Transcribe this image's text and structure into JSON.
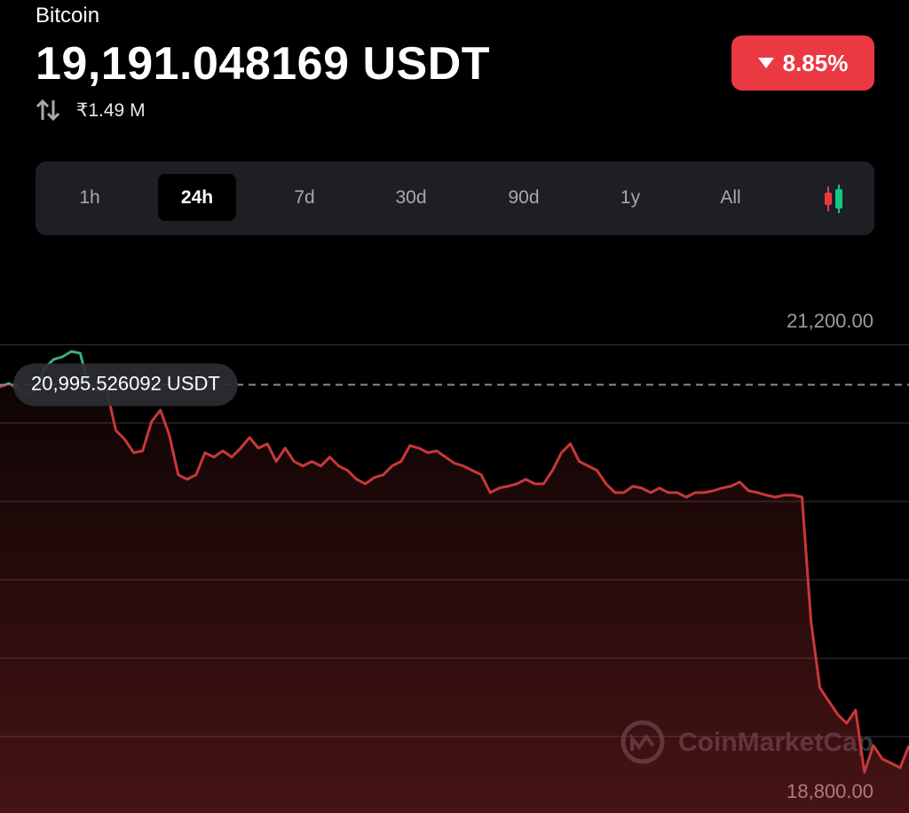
{
  "header": {
    "name": "Bitcoin",
    "price": "19,191.048169 USDT",
    "volume": "₹1.49 M",
    "change": "8.85%"
  },
  "tabs": {
    "items": [
      "1h",
      "24h",
      "7d",
      "30d",
      "90d",
      "1y",
      "All"
    ],
    "active": 1
  },
  "watermark": "CoinMarketCap",
  "chart_data": {
    "type": "line",
    "series": [
      {
        "color": "#c8383a",
        "up_color": "#3fae7a",
        "values": [
          20984,
          21002,
          20975,
          20943,
          20966,
          21079,
          21124,
          21138,
          21165,
          21156,
          20975,
          20966,
          20966,
          20762,
          20717,
          20649,
          20658,
          20807,
          20866,
          20739,
          20536,
          20513,
          20536,
          20649,
          20626,
          20658,
          20626,
          20672,
          20726,
          20672,
          20694,
          20604,
          20672,
          20604,
          20581,
          20604,
          20581,
          20626,
          20581,
          20558,
          20513,
          20490,
          20522,
          20536,
          20581,
          20604,
          20685,
          20672,
          20649,
          20658,
          20626,
          20595,
          20581,
          20558,
          20536,
          20445,
          20468,
          20477,
          20490,
          20513,
          20490,
          20490,
          20558,
          20649,
          20694,
          20604,
          20581,
          20558,
          20490,
          20445,
          20445,
          20477,
          20468,
          20445,
          20468,
          20445,
          20445,
          20422,
          20445,
          20445,
          20454,
          20468,
          20477,
          20499,
          20454,
          20445,
          20432,
          20422,
          20432,
          20432,
          20422,
          19788,
          19449,
          19381,
          19313,
          19268,
          19335,
          19018,
          19154,
          19086,
          19064,
          19041,
          19154
        ]
      }
    ],
    "reference": {
      "value": 20995.526092,
      "label": "20,995.526092 USDT"
    },
    "ylim": [
      18810,
      21600
    ],
    "yticks": [
      {
        "value": 18800,
        "label": "18,800.00"
      },
      {
        "value": 19200,
        "label": null
      },
      {
        "value": 19600,
        "label": null
      },
      {
        "value": 20000,
        "label": null
      },
      {
        "value": 20400,
        "label": null
      },
      {
        "value": 20800,
        "label": null
      },
      {
        "value": 21200,
        "label": "21,200.00"
      }
    ],
    "grid": true
  }
}
